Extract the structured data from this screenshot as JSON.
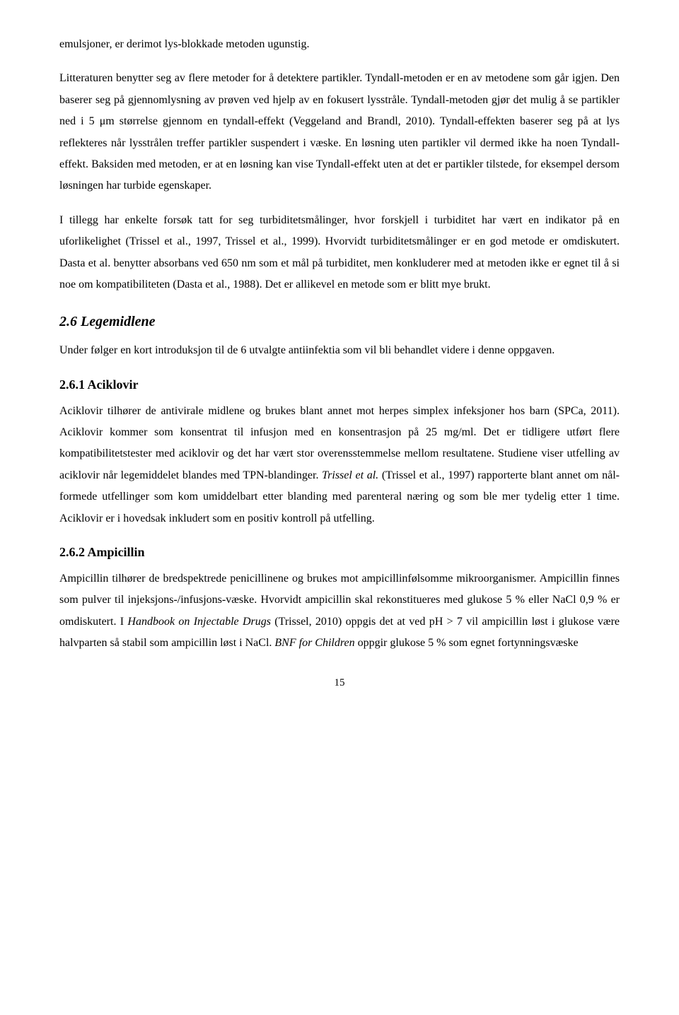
{
  "paragraphs": {
    "p1": "emulsjoner, er derimot lys-blokkade metoden ugunstig.",
    "p2_a": "Litteraturen benytter seg av flere metoder for å detektere partikler. Tyndall-metoden er en av metodene som går igjen. Den baserer seg på gjennomlysning av prøven ved hjelp av en fokusert lysstråle. Tyndall-metoden gjør det mulig å se partikler ned i 5 μm størrelse gjennom en tyndall-effekt (Veggeland and Brandl, 2010). Tyndall-effekten baserer seg på at lys reflekteres når lysstrålen treffer partikler suspendert i væske. En løsning uten partikler vil dermed ikke ha noen Tyndall-effekt. Baksiden med metoden, er at en løsning kan vise Tyndall-effekt uten at det er partikler tilstede, for eksempel dersom løsningen har turbide egenskaper.",
    "p3": "I tillegg har enkelte forsøk tatt for seg turbiditetsmålinger, hvor forskjell i turbiditet har vært en indikator på en uforlikelighet (Trissel et al., 1997, Trissel et al., 1999). Hvorvidt turbiditetsmålinger er en god metode er omdiskutert. Dasta et al. benytter absorbans ved 650 nm som et mål på turbiditet, men konkluderer med at metoden ikke er egnet til å si noe om kompatibiliteten (Dasta et al., 1988). Det er allikevel en metode som er blitt mye brukt.",
    "p4": "Under følger en kort introduksjon til de 6 utvalgte antiinfektia som vil bli behandlet videre i denne oppgaven.",
    "p5_a": "Aciklovir tilhører de antivirale midlene og brukes blant annet mot herpes simplex infeksjoner hos barn (SPCa, 2011). Aciklovir kommer som konsentrat til infusjon med en konsentrasjon på 25 mg/ml. Det er tidligere utført flere kompatibilitetstester med aciklovir og det har vært stor overensstemmelse mellom resultatene. Studiene viser utfelling av aciklovir når legemiddelet blandes med TPN-blandinger. ",
    "p5_italic": "Trissel et al.",
    "p5_b": " (Trissel et al., 1997) rapporterte blant annet om nål-formede utfellinger som kom umiddelbart etter blanding med parenteral næring og som ble mer tydelig etter 1 time. Aciklovir er i hovedsak inkludert som en positiv kontroll på utfelling.",
    "p6_a": "Ampicillin tilhører de bredspektrede penicillinene og brukes mot ampicillinfølsomme mikroorganismer. Ampicillin finnes som pulver til injeksjons-/infusjons-væske. Hvorvidt ampicillin skal rekonstitueres med glukose 5 % eller NaCl 0,9 % er omdiskutert. I ",
    "p6_italic1": "Handbook on Injectable Drugs",
    "p6_b": " (Trissel, 2010) oppgis det at ved pH > 7 vil ampicillin løst i glukose være halvparten så stabil som ampicillin løst i NaCl. ",
    "p6_italic2": "BNF for Children",
    "p6_c": " oppgir glukose 5 % som egnet fortynningsvæske"
  },
  "headings": {
    "h2_6": "2.6 Legemidlene",
    "h2_6_1": "2.6.1 Aciklovir",
    "h2_6_2": "2.6.2 Ampicillin"
  },
  "page_number": "15"
}
